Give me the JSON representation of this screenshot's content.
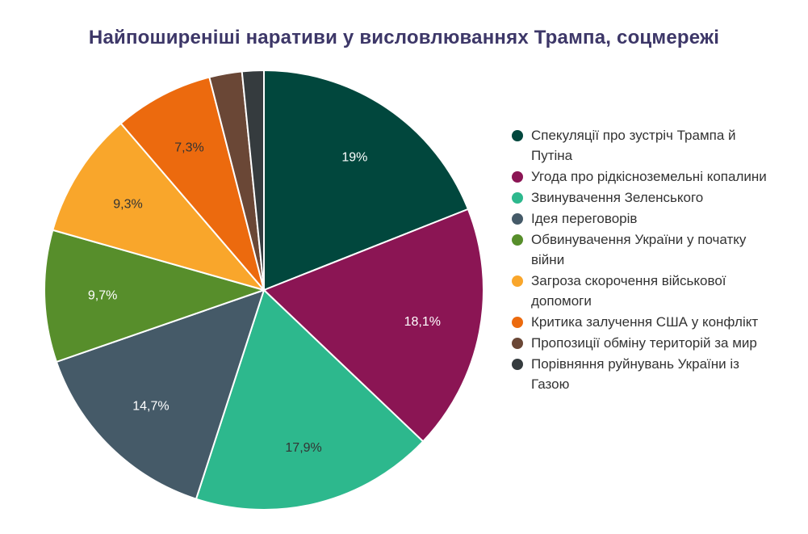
{
  "chart_data": {
    "type": "pie",
    "title": "Найпоширеніші наративи у висловлюваннях Трампа, соцмережі",
    "legend_position": "right",
    "slices": [
      {
        "label": "Спекуляції про зустріч Трампа й Путіна",
        "value": 19,
        "value_label": "19%",
        "color": "#01473d",
        "label_color": "#ffffff"
      },
      {
        "label": "Угода про рідкісноземельні копалини",
        "value": 18.1,
        "value_label": "18,1%",
        "color": "#8b1554",
        "label_color": "#ffffff"
      },
      {
        "label": "Звинувачення Зеленського",
        "value": 17.9,
        "value_label": "17,9%",
        "color": "#2db88d",
        "label_color": "#333333"
      },
      {
        "label": "Ідея переговорів",
        "value": 14.7,
        "value_label": "14,7%",
        "color": "#455a68",
        "label_color": "#ffffff"
      },
      {
        "label": "Обвинувачення України у початку війни",
        "value": 9.7,
        "value_label": "9,7%",
        "color": "#578e2b",
        "label_color": "#ffffff"
      },
      {
        "label": "Загроза скорочення військової допомоги",
        "value": 9.3,
        "value_label": "9,3%",
        "color": "#f9a62b",
        "label_color": "#333333"
      },
      {
        "label": "Критика залучення США у конфлікт",
        "value": 7.3,
        "value_label": "7,3%",
        "color": "#ec6a0e",
        "label_color": "#333333"
      },
      {
        "label": "Пропозиції обміну територій за мир",
        "value": 2.4,
        "value_label": "",
        "color": "#6a4736",
        "label_color": "#ffffff"
      },
      {
        "label": "Порівняння руйнувань України із Газою",
        "value": 1.6,
        "value_label": "",
        "color": "#353b3e",
        "label_color": "#ffffff"
      }
    ]
  }
}
